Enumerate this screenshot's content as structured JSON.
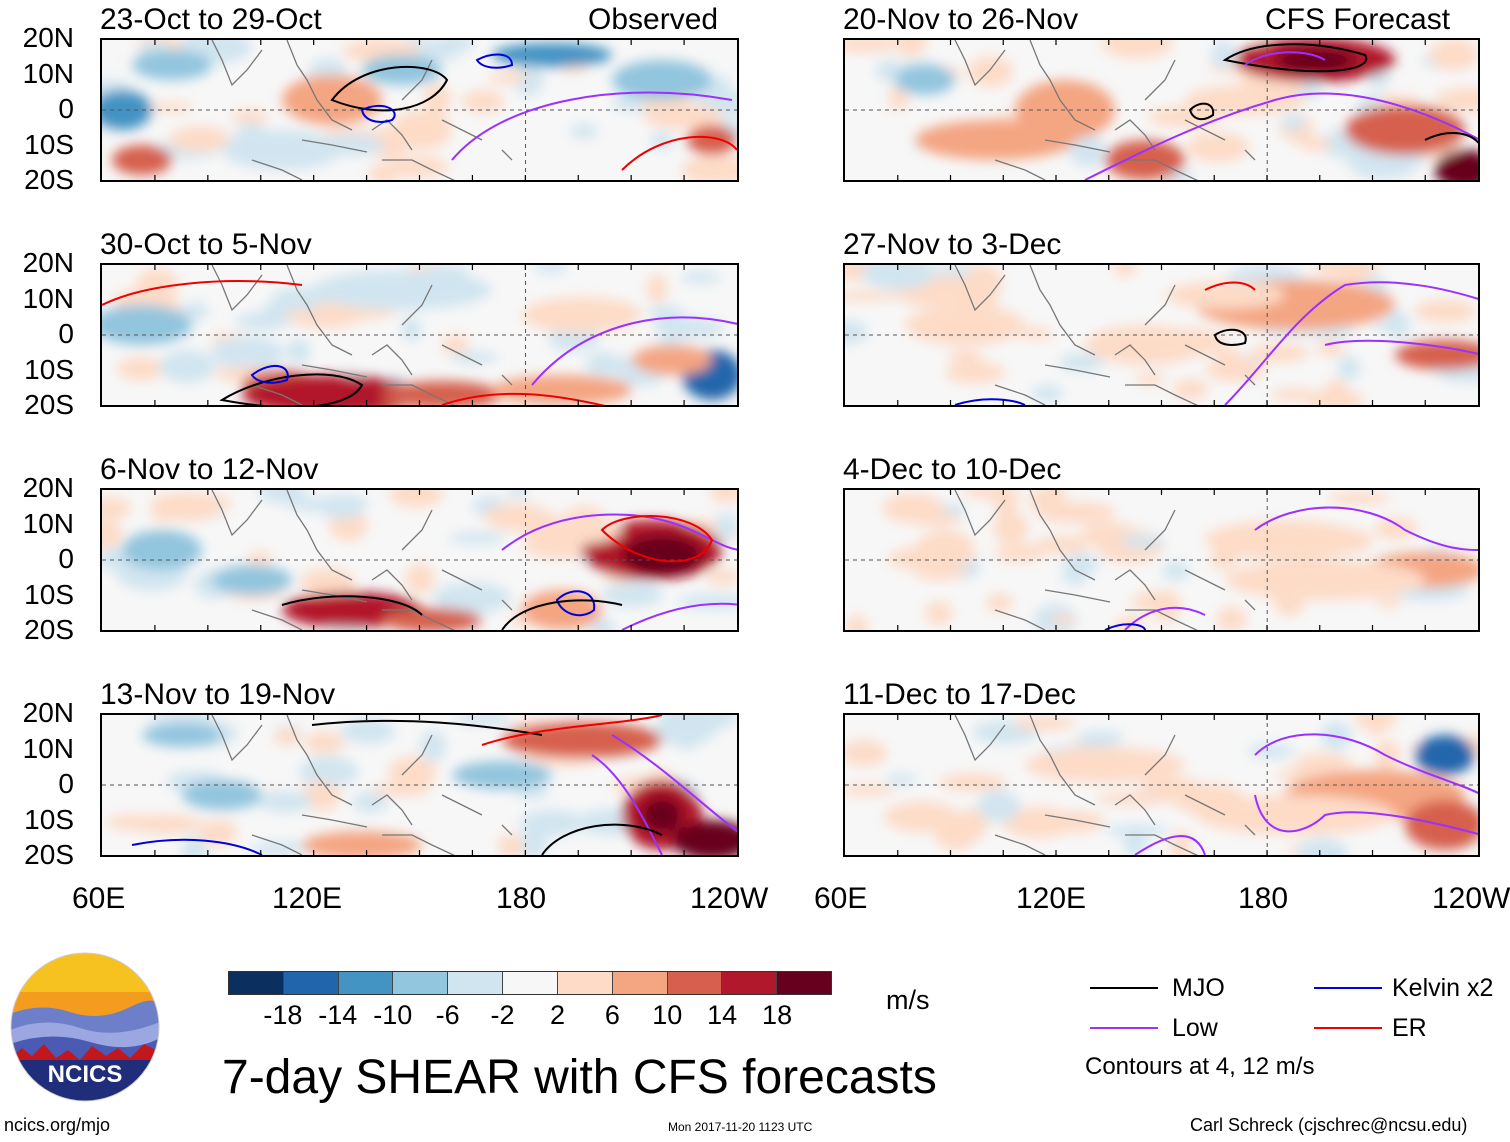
{
  "chart_data": {
    "type": "heatmap",
    "title": "7-day SHEAR with CFS forecasts",
    "units": "m/s",
    "x_tick_labels": [
      "60E",
      "120E",
      "180",
      "120W"
    ],
    "y_tick_labels": [
      "20N",
      "10N",
      "0",
      "10S",
      "20S"
    ],
    "x_range": [
      "60E",
      "120W"
    ],
    "y_range": [
      "20S",
      "20N"
    ],
    "colorbar": {
      "ticks": [
        "-18",
        "-14",
        "-10",
        "-6",
        "-2",
        "2",
        "6",
        "10",
        "14",
        "18"
      ],
      "colors": [
        "#0b2f5e",
        "#2166ac",
        "#4393c3",
        "#92c5de",
        "#d1e5f0",
        "#f7f7f7",
        "#fddbc7",
        "#f4a582",
        "#d6604d",
        "#b2182b",
        "#67001f"
      ]
    },
    "contour_legend": [
      {
        "label": "MJO",
        "color": "#000000"
      },
      {
        "label": "Kelvin x2",
        "color": "#0000dd"
      },
      {
        "label": "Low",
        "color": "#9b30ff"
      },
      {
        "label": "ER",
        "color": "#ee0000"
      }
    ],
    "contour_note": "Contours at 4, 12 m/s",
    "panels_observed": [
      {
        "title": "23-Oct to 29-Oct",
        "label": "Observed"
      },
      {
        "title": "30-Oct to 5-Nov"
      },
      {
        "title": "6-Nov to 12-Nov"
      },
      {
        "title": "13-Nov to 19-Nov"
      }
    ],
    "panels_forecast": [
      {
        "title": "20-Nov to 26-Nov",
        "label": "CFS Forecast"
      },
      {
        "title": "27-Nov to 3-Dec"
      },
      {
        "title": "4-Dec to 10-Dec"
      },
      {
        "title": "11-Dec to 17-Dec"
      }
    ]
  },
  "branding": {
    "logo_text": "NCICS",
    "url": "ncics.org/mjo",
    "timestamp": "Mon 2017-11-20 1123 UTC",
    "author": "Carl Schreck (cjschrec@ncsu.edu)"
  }
}
